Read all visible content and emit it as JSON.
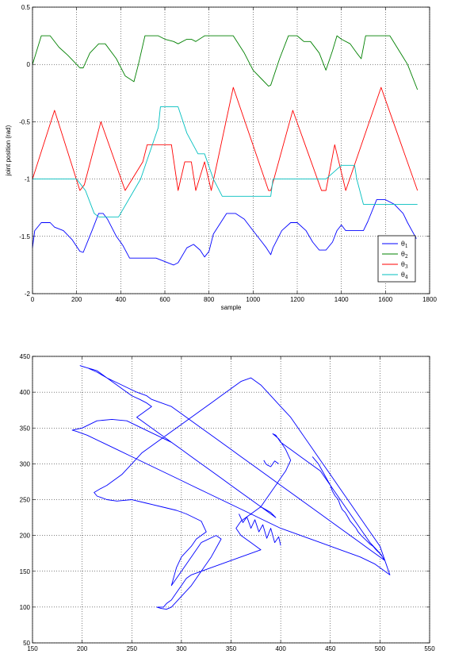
{
  "chart_data": [
    {
      "type": "line",
      "xlabel": "sample",
      "ylabel": "joint position (rad)",
      "xlim": [
        0,
        1800
      ],
      "ylim": [
        -2,
        0.5
      ],
      "xticks": [
        "0",
        "200",
        "400",
        "600",
        "800",
        "1000",
        "1200",
        "1400",
        "1600",
        "1800"
      ],
      "yticks": [
        "0.5",
        "0",
        "-0.5",
        "-1",
        "-1.5",
        "-2"
      ],
      "grid": true,
      "legend": "bottom-right",
      "series": [
        {
          "name": "θ1",
          "sub": "1",
          "color": "#0000ff",
          "x": [
            0,
            10,
            40,
            80,
            100,
            140,
            180,
            215,
            230,
            270,
            300,
            320,
            340,
            380,
            410,
            440,
            560,
            600,
            640,
            660,
            700,
            730,
            760,
            780,
            800,
            820,
            880,
            920,
            960,
            1000,
            1040,
            1060,
            1080,
            1090,
            1130,
            1170,
            1200,
            1240,
            1270,
            1300,
            1330,
            1360,
            1380,
            1400,
            1420,
            1460,
            1500,
            1520,
            1560,
            1600,
            1640,
            1680,
            1700,
            1740
          ],
          "y": [
            -1.6,
            -1.45,
            -1.38,
            -1.38,
            -1.42,
            -1.45,
            -1.53,
            -1.63,
            -1.64,
            -1.45,
            -1.3,
            -1.3,
            -1.35,
            -1.5,
            -1.58,
            -1.69,
            -1.69,
            -1.72,
            -1.75,
            -1.73,
            -1.6,
            -1.57,
            -1.62,
            -1.68,
            -1.63,
            -1.48,
            -1.3,
            -1.3,
            -1.35,
            -1.45,
            -1.55,
            -1.6,
            -1.66,
            -1.6,
            -1.45,
            -1.38,
            -1.38,
            -1.45,
            -1.55,
            -1.62,
            -1.62,
            -1.55,
            -1.45,
            -1.4,
            -1.45,
            -1.45,
            -1.45,
            -1.37,
            -1.18,
            -1.18,
            -1.22,
            -1.3,
            -1.38,
            -1.52
          ]
        },
        {
          "name": "θ2",
          "sub": "2",
          "color": "#008000",
          "x": [
            0,
            40,
            60,
            80,
            120,
            160,
            200,
            215,
            230,
            260,
            300,
            310,
            330,
            380,
            420,
            460,
            480,
            510,
            550,
            570,
            600,
            640,
            660,
            700,
            720,
            740,
            780,
            810,
            860,
            910,
            960,
            1000,
            1040,
            1070,
            1080,
            1120,
            1160,
            1200,
            1230,
            1260,
            1300,
            1330,
            1360,
            1380,
            1400,
            1440,
            1470,
            1490,
            1510,
            1540,
            1620,
            1700,
            1745
          ],
          "y": [
            0,
            0.25,
            0.25,
            0.25,
            0.15,
            0.08,
            0.0,
            -0.03,
            -0.03,
            0.1,
            0.18,
            0.18,
            0.18,
            0.05,
            -0.1,
            -0.15,
            0.0,
            0.25,
            0.25,
            0.25,
            0.22,
            0.2,
            0.18,
            0.22,
            0.22,
            0.2,
            0.25,
            0.25,
            0.25,
            0.25,
            0.1,
            -0.05,
            -0.13,
            -0.19,
            -0.18,
            0.05,
            0.25,
            0.25,
            0.2,
            0.2,
            0.1,
            -0.05,
            0.12,
            0.25,
            0.22,
            0.18,
            0.1,
            0.05,
            0.25,
            0.25,
            0.25,
            0.0,
            -0.22
          ]
        },
        {
          "name": "θ3",
          "sub": "3",
          "color": "#ff0000",
          "x": [
            0,
            100,
            215,
            235,
            310,
            420,
            500,
            520,
            560,
            600,
            630,
            660,
            690,
            720,
            740,
            780,
            810,
            910,
            1070,
            1080,
            1180,
            1310,
            1330,
            1370,
            1420,
            1580,
            1745
          ],
          "y": [
            -1.0,
            -0.4,
            -1.1,
            -1.05,
            -0.5,
            -1.1,
            -0.85,
            -0.7,
            -0.7,
            -0.7,
            -0.7,
            -1.1,
            -0.85,
            -0.85,
            -1.1,
            -0.85,
            -1.1,
            -0.2,
            -1.1,
            -1.1,
            -0.4,
            -1.1,
            -1.1,
            -0.7,
            -1.1,
            -0.2,
            -1.1
          ]
        },
        {
          "name": "θ4",
          "sub": "4",
          "color": "#00bfbf",
          "x": [
            0,
            200,
            240,
            270,
            280,
            300,
            330,
            390,
            490,
            570,
            580,
            600,
            640,
            660,
            700,
            750,
            780,
            820,
            860,
            1000,
            1080,
            1090,
            1200,
            1300,
            1330,
            1400,
            1460,
            1470,
            1500,
            1745
          ],
          "y": [
            -1.0,
            -1.0,
            -1.1,
            -1.25,
            -1.3,
            -1.33,
            -1.33,
            -1.33,
            -1.0,
            -0.55,
            -0.37,
            -0.37,
            -0.37,
            -0.37,
            -0.6,
            -0.78,
            -0.78,
            -1.0,
            -1.15,
            -1.15,
            -1.15,
            -1.0,
            -1.0,
            -1.0,
            -1.0,
            -0.88,
            -0.88,
            -1.0,
            -1.22,
            -1.22
          ]
        }
      ]
    },
    {
      "type": "line",
      "xlabel": "",
      "ylabel": "",
      "xlim": [
        150,
        550
      ],
      "ylim": [
        50,
        450
      ],
      "xticks": [
        "150",
        "200",
        "250",
        "300",
        "350",
        "400",
        "450",
        "500",
        "550"
      ],
      "yticks": [
        "450",
        "400",
        "350",
        "300",
        "250",
        "200",
        "150",
        "100",
        "50"
      ],
      "grid": true,
      "series": [
        {
          "color": "#0000ff",
          "x": [
            275,
            280,
            285,
            290,
            300,
            310,
            320,
            330,
            340,
            335,
            320,
            310,
            300,
            290,
            295,
            300,
            310,
            315,
            325,
            320,
            305,
            295,
            280,
            265,
            250,
            235,
            225,
            215,
            212,
            218,
            225,
            230,
            240,
            250,
            260,
            270,
            280,
            290,
            300,
            310,
            320,
            330,
            340,
            350,
            360,
            370,
            380,
            390,
            400,
            410,
            420,
            430,
            440,
            450,
            460,
            470,
            480,
            490,
            500,
            505,
            510,
            505,
            495,
            480,
            460,
            440,
            420,
            400,
            385,
            370,
            355,
            340,
            325,
            310,
            295,
            280,
            265,
            250,
            235,
            220,
            205,
            195,
            190,
            200,
            215,
            230,
            245,
            260,
            275,
            290,
            300,
            310,
            320,
            330,
            340,
            350,
            360,
            370,
            380,
            390,
            395,
            390,
            380,
            370,
            360,
            355,
            350,
            345,
            340,
            330,
            320,
            310,
            300,
            290,
            280,
            270,
            260,
            255,
            260,
            265,
            270,
            265,
            258,
            250,
            245,
            240,
            235,
            230,
            225,
            220,
            215,
            210,
            205,
            200,
            198,
            205,
            215,
            225,
            240,
            255,
            265,
            270,
            280,
            290,
            300,
            310,
            320,
            330,
            340,
            350,
            360,
            370,
            380,
            390,
            400,
            410,
            420,
            430,
            440,
            450,
            460,
            470,
            480,
            490,
            500,
            505,
            500,
            490,
            480,
            470,
            460,
            450,
            440,
            430,
            420,
            410,
            400,
            395,
            392,
            398,
            405,
            410,
            405,
            400,
            395,
            390,
            385,
            380,
            370,
            360,
            355,
            360,
            370,
            380,
            370,
            360,
            350,
            340,
            330,
            320,
            310,
            305,
            300,
            295,
            290,
            285,
            282,
            276
          ],
          "y": [
            100,
            98,
            97,
            100,
            115,
            130,
            150,
            170,
            195,
            200,
            190,
            170,
            150,
            130,
            155,
            170,
            185,
            195,
            205,
            220,
            230,
            235,
            240,
            245,
            250,
            248,
            250,
            255,
            260,
            265,
            270,
            275,
            285,
            300,
            315,
            325,
            335,
            345,
            355,
            365,
            375,
            385,
            395,
            405,
            415,
            420,
            410,
            395,
            380,
            365,
            345,
            325,
            305,
            285,
            265,
            245,
            225,
            205,
            185,
            165,
            145,
            150,
            160,
            170,
            180,
            190,
            200,
            210,
            220,
            230,
            240,
            250,
            260,
            270,
            280,
            290,
            300,
            310,
            320,
            330,
            340,
            345,
            347,
            350,
            360,
            362,
            360,
            350,
            340,
            330,
            320,
            310,
            300,
            290,
            280,
            270,
            260,
            250,
            240,
            230,
            225,
            232,
            240,
            250,
            260,
            265,
            270,
            275,
            280,
            290,
            300,
            310,
            320,
            330,
            340,
            350,
            360,
            365,
            370,
            375,
            380,
            385,
            390,
            395,
            400,
            405,
            410,
            415,
            420,
            425,
            430,
            432,
            434,
            436,
            437,
            434,
            428,
            420,
            410,
            400,
            395,
            390,
            385,
            380,
            370,
            360,
            350,
            340,
            330,
            320,
            310,
            300,
            290,
            280,
            270,
            260,
            250,
            240,
            230,
            220,
            210,
            200,
            190,
            180,
            170,
            165,
            175,
            190,
            210,
            230,
            250,
            270,
            290,
            300,
            310,
            320,
            330,
            340,
            342,
            335,
            320,
            305,
            290,
            280,
            270,
            260,
            250,
            240,
            230,
            220,
            210,
            200,
            190,
            180,
            175,
            170,
            165,
            160,
            155,
            150,
            145,
            140,
            130,
            120,
            110,
            105,
            100,
            100
          ]
        },
        {
          "color": "#0000ff",
          "x": [
            432,
            438,
            440,
            444,
            446,
            450,
            452,
            455,
            458,
            460,
            462,
            465,
            468,
            470,
            473,
            476,
            478,
            481,
            484,
            487,
            490,
            493,
            496,
            499,
            502
          ],
          "y": [
            310,
            300,
            295,
            285,
            280,
            270,
            262,
            255,
            250,
            242,
            236,
            232,
            225,
            220,
            215,
            210,
            205,
            200,
            196,
            192,
            188,
            185,
            180,
            176,
            172
          ]
        },
        {
          "color": "#0000ff",
          "x": [
            383,
            385,
            387,
            390,
            392,
            394,
            396,
            398
          ],
          "y": [
            305,
            300,
            298,
            296,
            300,
            304,
            302,
            300
          ]
        },
        {
          "color": "#0000ff",
          "x": [
            358,
            362,
            366,
            370,
            374,
            378,
            382,
            386,
            390,
            394,
            398,
            400
          ],
          "y": [
            230,
            218,
            226,
            210,
            222,
            205,
            215,
            196,
            210,
            190,
            198,
            186
          ]
        }
      ]
    }
  ]
}
